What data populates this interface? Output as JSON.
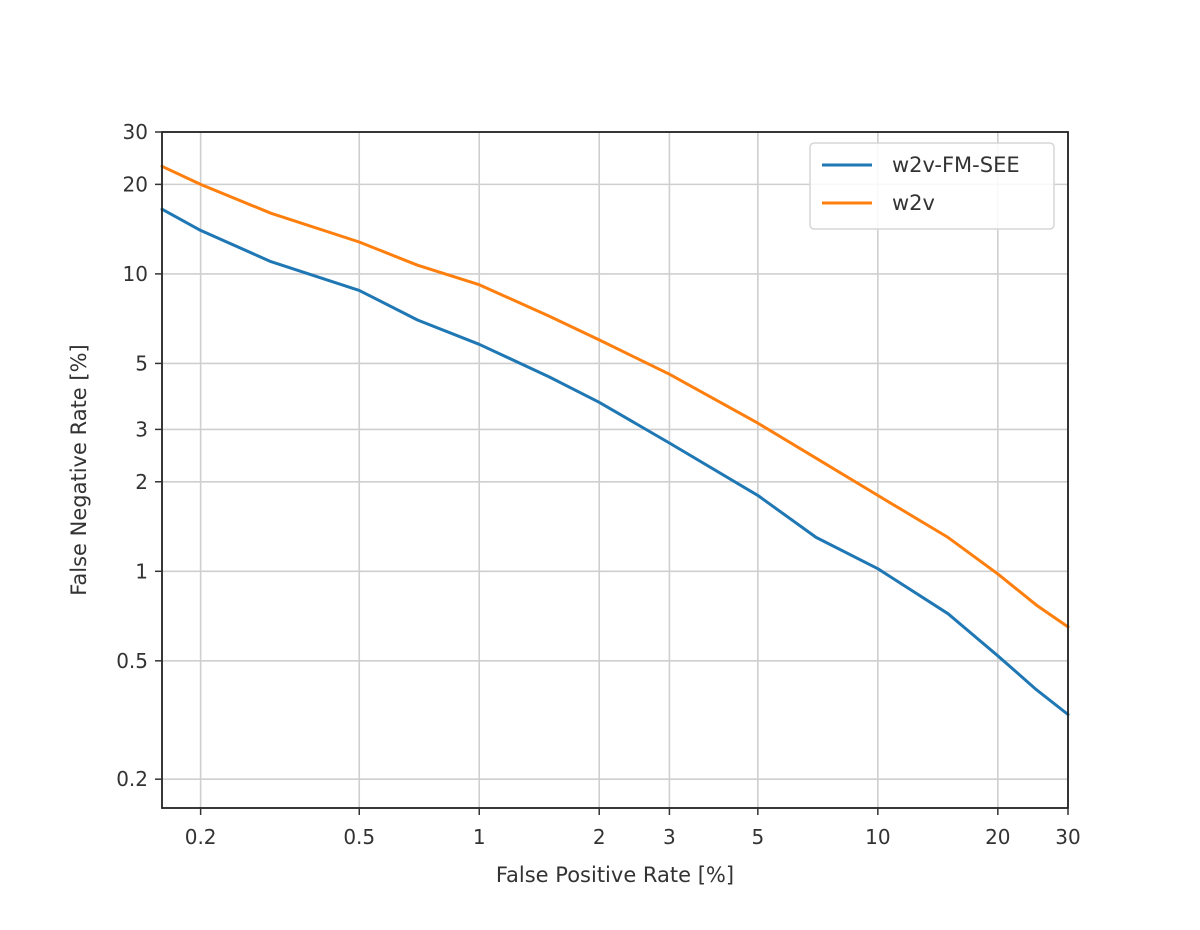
{
  "chart_data": {
    "type": "line",
    "title": "",
    "xlabel": "False Positive Rate [%]",
    "ylabel": "False Negative Rate [%]",
    "xscale": "log",
    "yscale": "log",
    "xlim": [
      0.16,
      30
    ],
    "ylim": [
      0.16,
      30
    ],
    "x_ticks": [
      0.2,
      0.5,
      1,
      2,
      3,
      5,
      10,
      20,
      30
    ],
    "x_tick_labels": [
      "0.2",
      "0.5",
      "1",
      "2",
      "3",
      "5",
      "10",
      "20",
      "30"
    ],
    "y_ticks": [
      0.2,
      0.5,
      1,
      2,
      3,
      5,
      10,
      20,
      30
    ],
    "y_tick_labels": [
      "0.2",
      "0.5",
      "1",
      "2",
      "3",
      "5",
      "10",
      "20",
      "30"
    ],
    "grid": true,
    "legend_position": "top-right",
    "series": [
      {
        "name": "w2v-FM-SEE",
        "color": "#1f77b4",
        "x": [
          0.16,
          0.2,
          0.3,
          0.5,
          0.7,
          1,
          1.5,
          2,
          3,
          5,
          7,
          10,
          15,
          20,
          25,
          30
        ],
        "y": [
          16.5,
          14.0,
          11.0,
          8.8,
          7.0,
          5.8,
          4.5,
          3.7,
          2.7,
          1.8,
          1.3,
          1.02,
          0.72,
          0.52,
          0.4,
          0.33
        ]
      },
      {
        "name": "w2v",
        "color": "#ff7f0e",
        "x": [
          0.16,
          0.2,
          0.3,
          0.5,
          0.7,
          1,
          1.5,
          2,
          3,
          5,
          7,
          10,
          15,
          20,
          25,
          30
        ],
        "y": [
          23.0,
          20.0,
          16.0,
          12.8,
          10.7,
          9.2,
          7.2,
          6.0,
          4.6,
          3.15,
          2.4,
          1.8,
          1.3,
          0.98,
          0.77,
          0.65
        ]
      }
    ]
  }
}
